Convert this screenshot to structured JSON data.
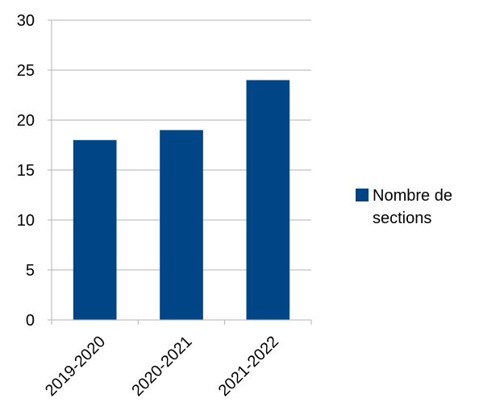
{
  "chart_data": {
    "type": "bar",
    "title": "",
    "xlabel": "",
    "ylabel": "",
    "categories": [
      "2019-2020",
      "2020-2021",
      "2021-2022"
    ],
    "series": [
      {
        "name": "Nombre de sections",
        "values": [
          18,
          19,
          24
        ],
        "color": "#004586"
      }
    ],
    "ylim": [
      0,
      30
    ],
    "yticks": [
      0,
      5,
      10,
      15,
      20,
      25,
      30
    ],
    "grid": true,
    "legend_position": "right"
  }
}
